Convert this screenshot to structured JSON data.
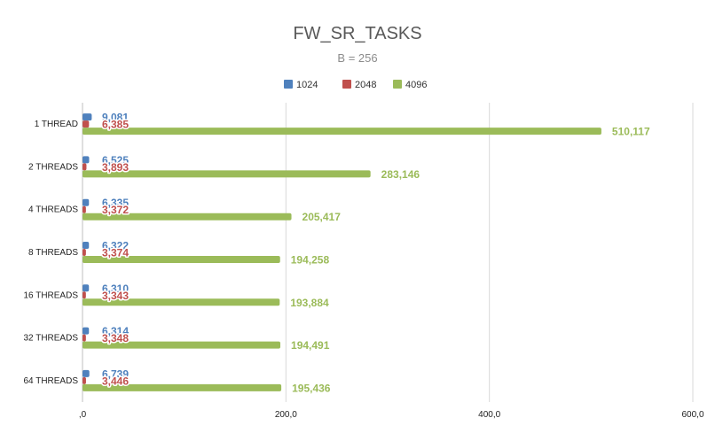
{
  "chart_data": {
    "type": "bar",
    "orientation": "horizontal",
    "title": "FW_SR_TASKS",
    "subtitle": "B = 256",
    "categories": [
      "1 THREAD",
      "2 THREADS",
      "4 THREADS",
      "8 THREADS",
      "16 THREADS",
      "32 THREADS",
      "64 THREADS"
    ],
    "series": [
      {
        "name": "1024",
        "color": "#4f81bd",
        "values": [
          9.081,
          6.525,
          6.335,
          6.322,
          6.31,
          6.314,
          6.739
        ],
        "labels": [
          "9,081",
          "6,525",
          "6,335",
          "6,322",
          "6,310",
          "6,314",
          "6,739"
        ]
      },
      {
        "name": "2048",
        "color": "#c0504d",
        "values": [
          6.385,
          3.893,
          3.372,
          3.374,
          3.343,
          3.348,
          3.446
        ],
        "labels": [
          "6,385",
          "3,893",
          "3,372",
          "3,374",
          "3,343",
          "3,348",
          "3,446"
        ]
      },
      {
        "name": "4096",
        "color": "#9bbb59",
        "values": [
          510.117,
          283.146,
          205.417,
          194.258,
          193.884,
          194.491,
          195.436
        ],
        "labels": [
          "510,117",
          "283,146",
          "205,417",
          "194,258",
          "193,884",
          "194,491",
          "195,436"
        ]
      }
    ],
    "xlim": [
      0,
      600
    ],
    "xticks": [
      0,
      200,
      400,
      600
    ],
    "xtick_labels": [
      ",0",
      "200,0",
      "400,0",
      "600,0"
    ],
    "grid": "vertical",
    "legend_position": "top"
  }
}
